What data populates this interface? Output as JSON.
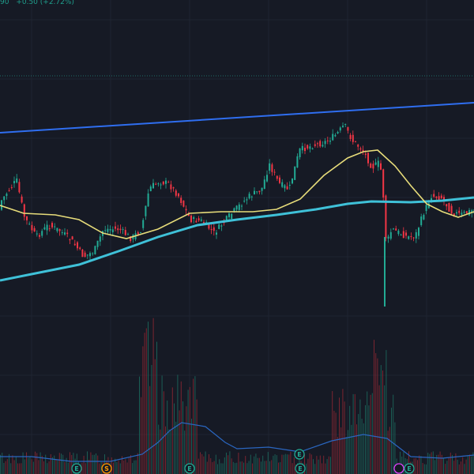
{
  "readout": {
    "price_tail": "90",
    "change": "+0.50 (+2.72%)"
  },
  "colors": {
    "background": "#161a25",
    "grid": "#1f2431",
    "up": "#22ab94",
    "down": "#f23645",
    "volume_up": "#1b5e55",
    "volume_down": "#7b2530",
    "ma_fast": "#e7dc7a",
    "ma_slow": "#3fc1d8",
    "trendline": "#2f6ef0",
    "volume_ma": "#2a66c0",
    "price_line": "#1f6f68"
  },
  "chart_data": {
    "type": "candlestick",
    "overlays": [
      {
        "kind": "moving-average-fast",
        "color": "#e7dc7a"
      },
      {
        "kind": "moving-average-slow",
        "color": "#3fc1d8"
      },
      {
        "kind": "trendline",
        "color": "#2f6ef0"
      }
    ],
    "volume_pane": true,
    "grid": true
  },
  "event_markers": [
    {
      "label": "E",
      "color": "#22ab94",
      "icon": "earnings-marker-icon"
    },
    {
      "label": "S",
      "color": "#ff9800",
      "icon": "split-marker-icon"
    },
    {
      "label": "E",
      "color": "#22ab94",
      "icon": "earnings-marker-icon"
    },
    {
      "label": "E",
      "color": "#22ab94",
      "icon": "earnings-marker-icon"
    },
    {
      "label": "E",
      "color": "#22ab94",
      "icon": "earnings-marker-icon"
    },
    {
      "label": "",
      "color": "#e040fb",
      "icon": "dividend-marker-icon"
    },
    {
      "label": "E",
      "color": "#22ab94",
      "icon": "earnings-marker-icon"
    }
  ]
}
